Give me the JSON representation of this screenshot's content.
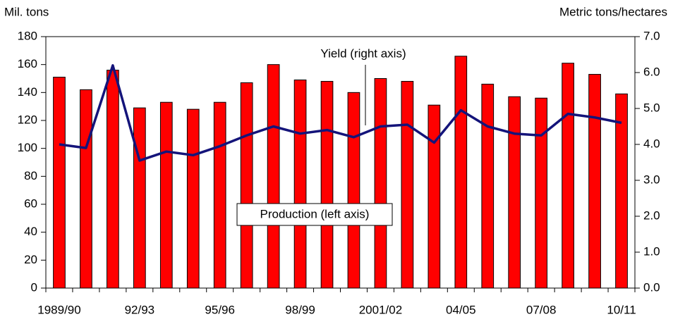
{
  "chart_data": {
    "type": "bar_line",
    "y_label": "Mil. tons",
    "y2_label": "Metric tons/hectares",
    "annotations": [
      "Yield (right axis)",
      "Production (left axis)"
    ],
    "categories": [
      "1989/90",
      null,
      null,
      "92/93",
      null,
      null,
      "95/96",
      null,
      null,
      "98/99",
      null,
      null,
      "2001/02",
      null,
      null,
      "04/05",
      null,
      null,
      "07/08",
      null,
      null,
      "10/11"
    ],
    "series": [
      {
        "name": "Production (left axis)",
        "color": "#ff0000",
        "axis": "y",
        "values": [
          151,
          142,
          156,
          129,
          133,
          128,
          133,
          147,
          160,
          149,
          148,
          140,
          150,
          148,
          131,
          166,
          146,
          137,
          136,
          161,
          153,
          139
        ]
      },
      {
        "name": "Yield (right axis)",
        "color": "#14147a",
        "axis": "y2",
        "values": [
          4.0,
          3.9,
          6.2,
          3.55,
          3.8,
          3.7,
          3.95,
          4.25,
          4.5,
          4.3,
          4.4,
          4.2,
          4.5,
          4.55,
          4.05,
          4.95,
          4.5,
          4.3,
          4.25,
          4.85,
          4.75,
          4.6
        ]
      }
    ],
    "ylim": [
      0,
      180
    ],
    "yticks": [
      0,
      20,
      40,
      60,
      80,
      100,
      120,
      140,
      160,
      180
    ],
    "y2lim": [
      0,
      7
    ],
    "y2ticks": [
      {
        "value": 0,
        "label": "0.0"
      },
      {
        "value": 1,
        "label": "1.0"
      },
      {
        "value": 2,
        "label": "2.0"
      },
      {
        "value": 3,
        "label": "3.0"
      },
      {
        "value": 4,
        "label": "4.0"
      },
      {
        "value": 5,
        "label": "5.0"
      },
      {
        "value": 6,
        "label": "6.0"
      },
      {
        "value": 7,
        "label": "7.0"
      }
    ],
    "grid": false
  }
}
